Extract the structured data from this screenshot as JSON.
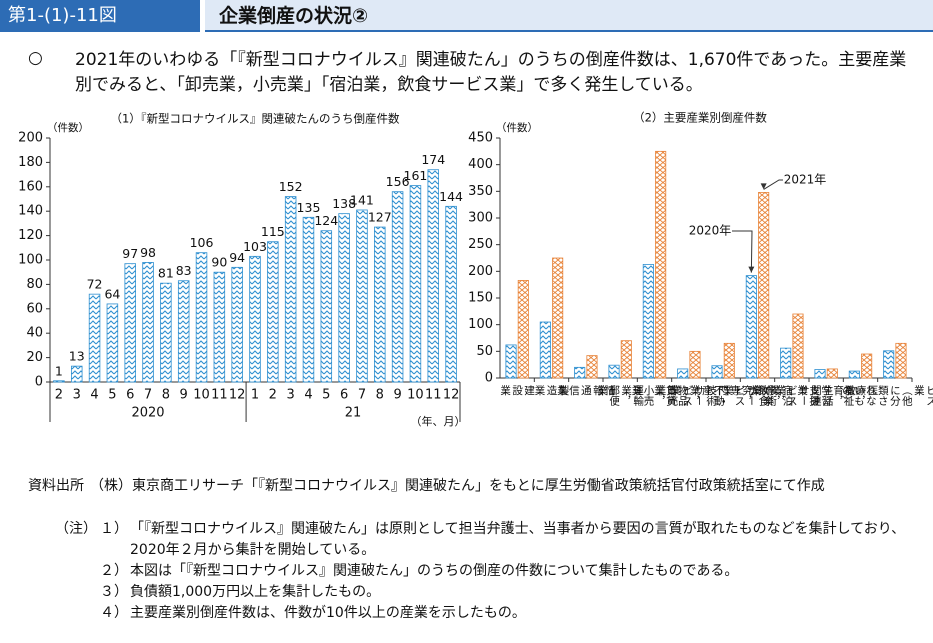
{
  "header": {
    "label": "第1-(1)-11図",
    "title": "企業倒産の状況②"
  },
  "summary": {
    "bullet": "○",
    "text": "2021年のいわゆる「『新型コロナウイルス』関連破たん」のうちの倒産件数は、1,670件であった。主要産業別でみると、「卸売業，小売業」「宿泊業，飲食サービス業」で多く発生している。"
  },
  "chart_data": [
    {
      "type": "bar",
      "title": "（1）『新型コロナウイルス』関連破たんのうち倒産件数",
      "y_label": "（件数）",
      "x_label": "（年、月）",
      "categories": [
        "2",
        "3",
        "4",
        "5",
        "6",
        "7",
        "8",
        "9",
        "10",
        "11",
        "12",
        "1",
        "2",
        "3",
        "4",
        "5",
        "6",
        "7",
        "8",
        "9",
        "10",
        "11",
        "12"
      ],
      "groups": [
        {
          "label": "2020",
          "count": 11
        },
        {
          "label": "21",
          "count": 12
        }
      ],
      "values": [
        1,
        13,
        72,
        64,
        97,
        98,
        81,
        83,
        106,
        90,
        94,
        103,
        115,
        152,
        135,
        124,
        138,
        141,
        127,
        156,
        161,
        174,
        144
      ],
      "color": "#2e8fd0",
      "ylim": [
        0,
        200
      ],
      "yticks": [
        0,
        20,
        40,
        60,
        80,
        100,
        120,
        140,
        160,
        180,
        200
      ]
    },
    {
      "type": "grouped_bar",
      "title": "（2）主要産業別倒産件数",
      "y_label": "（件数）",
      "categories": [
        "建設業",
        "製造業",
        "情報通信業",
        "運輸業，郵便業",
        "卸売業，小売業",
        "不動産業，物品賃貸業",
        "学術研究，専門・技術サービス業",
        "宿泊業，飲食サービス業",
        "生活関連サービス業，娯楽業",
        "教育，学習支援業",
        "医療，福祉",
        "サービス業（他に分類されないもの）"
      ],
      "series": [
        {
          "name": "2020年",
          "color": "#2e8fd0",
          "values": [
            62,
            105,
            20,
            24,
            213,
            17,
            23,
            192,
            56,
            16,
            13,
            51
          ]
        },
        {
          "name": "2021年",
          "color": "#e8843a",
          "values": [
            183,
            225,
            42,
            70,
            425,
            50,
            65,
            348,
            120,
            17,
            45,
            65
          ]
        }
      ],
      "ylim": [
        0,
        450
      ],
      "yticks": [
        0,
        50,
        100,
        150,
        200,
        250,
        300,
        350,
        400,
        450
      ]
    }
  ],
  "footer": {
    "source_label": "資料出所",
    "source_text": "（株）東京商工リサーチ「『新型コロナウイルス』関連破たん」をもとに厚生労働省政策統括官付政策統括室にて作成",
    "notes_label": "（注）",
    "notes": [
      {
        "num": "１）",
        "text": "「『新型コロナウイルス』関連破たん」は原則として担当弁護士、当事者から要因の言質が取れたものなどを集計しており、2020年２月から集計を開始している。"
      },
      {
        "num": "２）",
        "text": "本図は「『新型コロナウイルス』関連破たん」のうちの倒産の件数について集計したものである。"
      },
      {
        "num": "３）",
        "text": "負債額1,000万円以上を集計したもの。"
      },
      {
        "num": "４）",
        "text": "主要産業別倒産件数は、件数が10件以上の産業を示したもの。"
      }
    ]
  }
}
